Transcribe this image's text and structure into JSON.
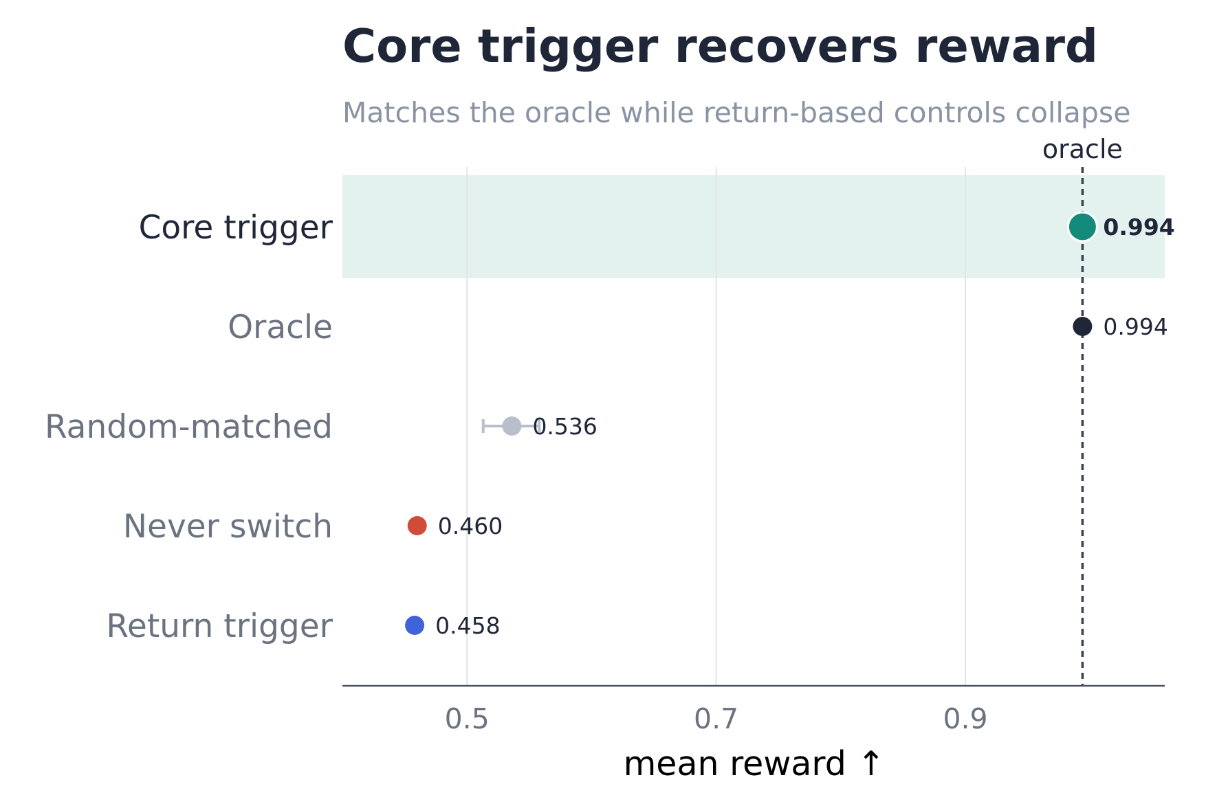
{
  "chart_data": {
    "type": "dot",
    "title": "Core trigger recovers reward",
    "subtitle": "Matches the oracle while return-based controls collapse",
    "xlabel": "mean reward  ↑",
    "xlim": [
      0.4,
      1.06
    ],
    "xticks": [
      0.5,
      0.7,
      0.9
    ],
    "xtick_labels": [
      "0.5",
      "0.7",
      "0.9"
    ],
    "grid": "vertical",
    "reference_line": {
      "label": "oracle",
      "value": 0.994
    },
    "categories": [
      "Core trigger",
      "Oracle",
      "Random-matched",
      "Never switch",
      "Return trigger"
    ],
    "values": [
      0.994,
      0.994,
      0.536,
      0.46,
      0.458
    ],
    "value_labels": [
      "0.994",
      "0.994",
      "0.536",
      "0.460",
      "0.458"
    ],
    "errors": [
      null,
      null,
      [
        0.513,
        0.558
      ],
      null,
      null
    ],
    "colors": [
      "#138a7a",
      "#1f2637",
      "#b8bfcb",
      "#d14b3a",
      "#3f63d8"
    ],
    "highlight": "Core trigger",
    "highlight_color": "#e3f2ef"
  }
}
